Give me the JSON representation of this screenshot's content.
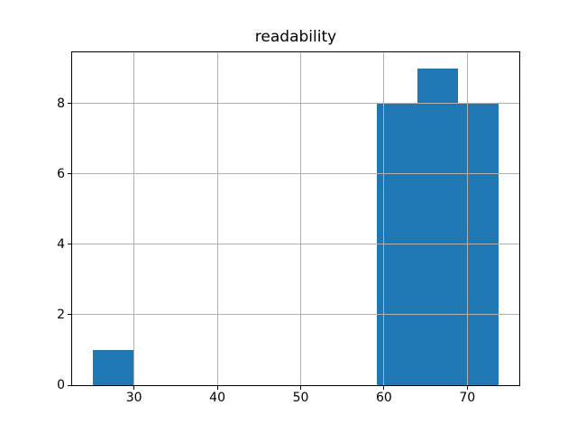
{
  "figure": {
    "background": "#ffffff"
  },
  "chart_data": {
    "type": "bar",
    "subtype": "histogram",
    "title": "readability",
    "bin_edges": [
      25.0,
      29.88,
      34.76,
      39.64,
      44.52,
      49.4,
      54.28,
      59.16,
      64.04,
      68.92,
      73.8
    ],
    "counts": [
      1,
      0,
      0,
      0,
      0,
      0,
      0,
      8,
      9,
      8
    ],
    "total_count": 26,
    "xlabel": "",
    "ylabel": "",
    "xticks": [
      30,
      40,
      50,
      60,
      70
    ],
    "yticks": [
      0,
      2,
      4,
      6,
      8
    ],
    "xlim": [
      22.56,
      76.24
    ],
    "ylim": [
      0,
      9.45
    ],
    "grid": true,
    "legend": "none",
    "bar_color": "#1f77b4",
    "grid_color": "#b0b0b0",
    "axis_color": "#000000",
    "tick_label_color": "#000000"
  }
}
